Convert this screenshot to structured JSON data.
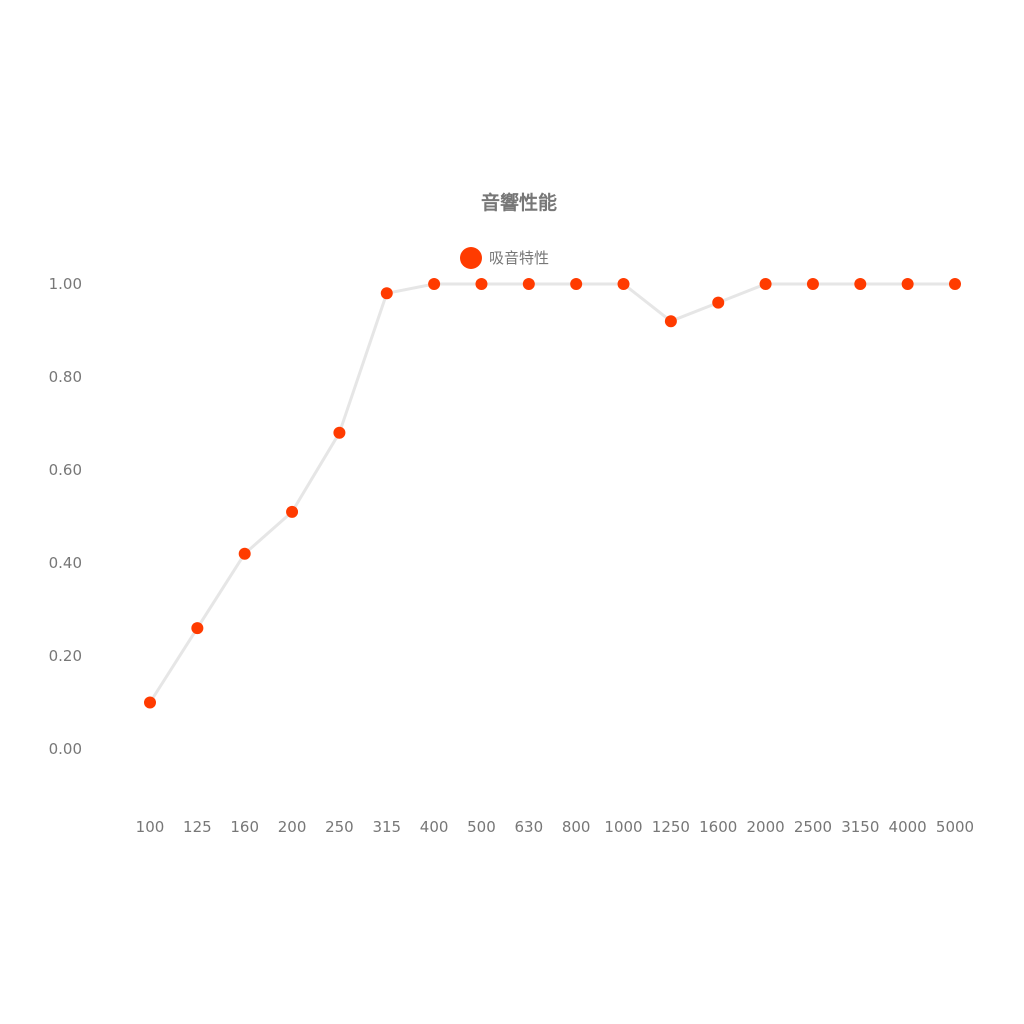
{
  "chart_data": {
    "type": "line",
    "title": "音響性能",
    "legend_position": "top-center",
    "grid": false,
    "categories": [
      "100",
      "125",
      "160",
      "200",
      "250",
      "315",
      "400",
      "500",
      "630",
      "800",
      "1000",
      "1250",
      "1600",
      "2000",
      "2500",
      "3150",
      "4000",
      "5000"
    ],
    "series": [
      {
        "name": "吸音特性",
        "values": [
          0.1,
          0.26,
          0.42,
          0.51,
          0.68,
          0.98,
          1.0,
          1.0,
          1.0,
          1.0,
          1.0,
          0.92,
          0.96,
          1.0,
          1.0,
          1.0,
          1.0,
          1.0
        ],
        "marker_color": "#ff3b00",
        "line_color": "#e6e6e6"
      }
    ],
    "ylim": [
      -0.1,
      1.1
    ],
    "yticks": [
      "0.00",
      "0.20",
      "0.40",
      "0.60",
      "0.80",
      "1.00"
    ],
    "xlabel": "",
    "ylabel": ""
  }
}
